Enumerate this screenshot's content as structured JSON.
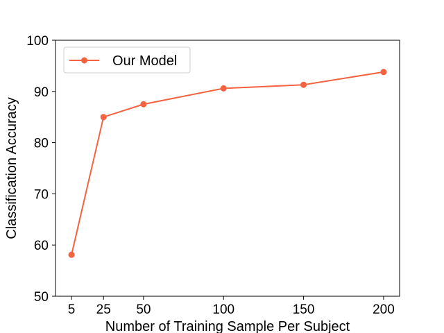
{
  "chart_data": {
    "type": "line",
    "title": "",
    "xlabel": "Number of Training Sample Per Subject",
    "ylabel": "Classification Accuracy",
    "x": [
      5,
      25,
      50,
      100,
      150,
      200
    ],
    "xticks": [
      5,
      25,
      50,
      100,
      150,
      200
    ],
    "yticks": [
      50,
      60,
      70,
      80,
      90,
      100
    ],
    "xlim": [
      -5,
      210
    ],
    "ylim": [
      50,
      100
    ],
    "grid": false,
    "legend_position": "top-left",
    "series": [
      {
        "name": "Our Model",
        "values": [
          58.1,
          85.0,
          87.5,
          90.6,
          91.3,
          93.8
        ],
        "color": "#f4623f",
        "marker": "circle"
      }
    ]
  }
}
